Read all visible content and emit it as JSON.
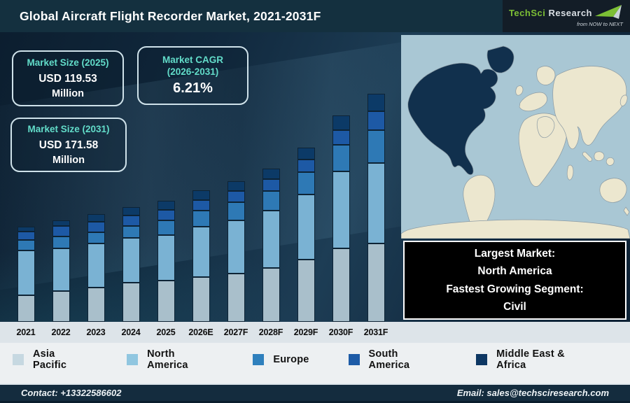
{
  "header": {
    "title": "Global Aircraft Flight Recorder Market, 2021-2031F",
    "logo": {
      "brand_primary": "TechSci",
      "brand_secondary": "Research",
      "tagline": "from NOW to NEXT",
      "accent_color": "#7cbf35"
    }
  },
  "callouts": {
    "size_2025": {
      "title": "Market Size (2025)",
      "value": "USD 119.53",
      "unit": "Million"
    },
    "cagr": {
      "title": "Market CAGR",
      "subtitle": "(2026-2031)",
      "value": "6.21%"
    },
    "size_2031": {
      "title": "Market Size (2031)",
      "value": "USD 171.58",
      "unit": "Million"
    }
  },
  "chart_data": {
    "type": "bar",
    "stacked": true,
    "title": "Global Aircraft Flight Recorder Market, 2021-2031F",
    "categories": [
      "2021",
      "2022",
      "2023",
      "2024",
      "2025",
      "2026E",
      "2027F",
      "2028F",
      "2029F",
      "2030F",
      "2031F"
    ],
    "series": [
      {
        "name": "Asia Pacific",
        "color": "#a9bfcb",
        "values": [
          38,
          44,
          49,
          56,
          59,
          64,
          69,
          77,
          89,
          105,
          112
        ]
      },
      {
        "name": "North America",
        "color": "#7ab2d3",
        "values": [
          64,
          61,
          63,
          64,
          65,
          72,
          76,
          82,
          93,
          110,
          115
        ]
      },
      {
        "name": "Europe",
        "color": "#2e79b5",
        "values": [
          15,
          17,
          16,
          17,
          21,
          23,
          26,
          28,
          32,
          38,
          47
        ]
      },
      {
        "name": "South America",
        "color": "#1d59a5",
        "values": [
          12,
          15,
          15,
          15,
          15,
          15,
          16,
          17,
          18,
          21,
          27
        ]
      },
      {
        "name": "Middle East & Africa",
        "color": "#0c3a67",
        "values": [
          7,
          8,
          11,
          12,
          13,
          14,
          14,
          15,
          17,
          21,
          25
        ]
      }
    ],
    "value_axis": "none shown; series values are relative bar-segment heights (px)",
    "legend_position": "bottom",
    "annotations": {
      "market_size_2025": "USD 119.53 Million",
      "market_size_2031": "USD 171.58 Million",
      "cagr_2026_2031": "6.21%"
    }
  },
  "legend": [
    {
      "label": "Asia Pacific",
      "color": "#c6d8e1"
    },
    {
      "label": "North America",
      "color": "#90c6e0"
    },
    {
      "label": "Europe",
      "color": "#2f80bd"
    },
    {
      "label": "South America",
      "color": "#1d5ba7"
    },
    {
      "label": "Middle East & Africa",
      "color": "#0d3763"
    }
  ],
  "map": {
    "highlighted_region": "North America",
    "ocean_color": "#a9c7d4",
    "land_color": "#ece7cf",
    "highlight_color": "#11304d",
    "border_color": "#8b9aa3"
  },
  "info_box": {
    "lines": [
      "Largest Market:",
      "North America",
      "Fastest Growing Segment:",
      "Civil"
    ]
  },
  "footer": {
    "contact": "Contact: +13322586602",
    "email": "Email: sales@techsciresearch.com"
  }
}
